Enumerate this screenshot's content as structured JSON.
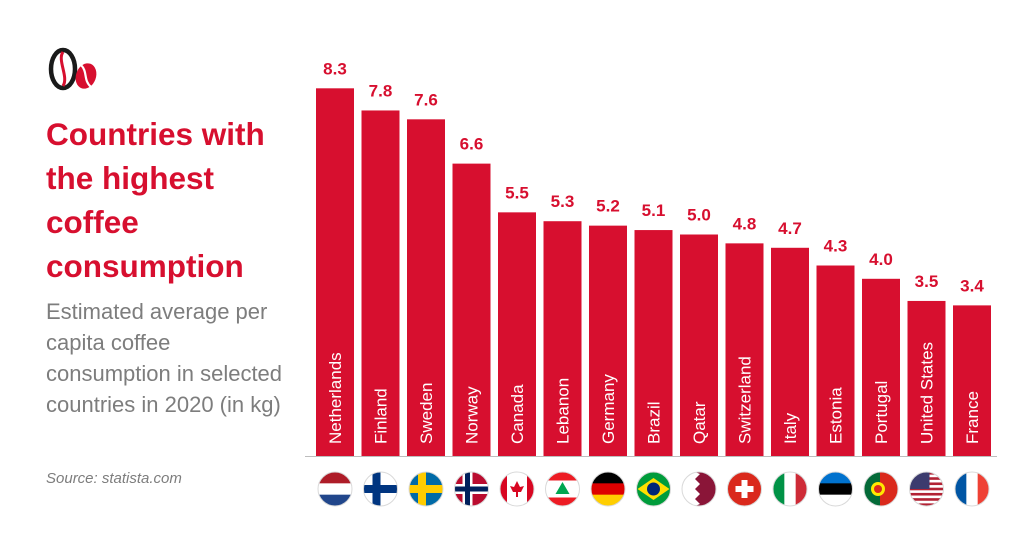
{
  "chart_data": {
    "type": "bar",
    "title": "Countries with the highest coffee consumption",
    "subtitle": "Estimated average per capita coffee consumption in selected countries in 2020 (in kg)",
    "source": "Source: statista.com",
    "categories": [
      "Netherlands",
      "Finland",
      "Sweden",
      "Norway",
      "Canada",
      "Lebanon",
      "Germany",
      "Brazil",
      "Qatar",
      "Switzerland",
      "Italy",
      "Estonia",
      "Portugal",
      "United States",
      "France"
    ],
    "values": [
      8.3,
      7.8,
      7.6,
      6.6,
      5.5,
      5.3,
      5.2,
      5.1,
      5.0,
      4.8,
      4.7,
      4.3,
      4.0,
      3.5,
      3.4
    ],
    "value_labels": [
      "8.3",
      "7.8",
      "7.6",
      "6.6",
      "5.5",
      "5.3",
      "5.2",
      "5.1",
      "5.0",
      "4.8",
      "4.7",
      "4.3",
      "4.0",
      "3.5",
      "3.4"
    ],
    "bar_color": "#d70f2f",
    "label_color": "#d70f2f",
    "flag_icons": [
      "netherlands-flag-icon",
      "finland-flag-icon",
      "sweden-flag-icon",
      "norway-flag-icon",
      "canada-flag-icon",
      "lebanon-flag-icon",
      "germany-flag-icon",
      "brazil-flag-icon",
      "qatar-flag-icon",
      "switzerland-flag-icon",
      "italy-flag-icon",
      "estonia-flag-icon",
      "portugal-flag-icon",
      "united-states-flag-icon",
      "france-flag-icon"
    ],
    "grid": false,
    "legend": "none"
  },
  "logo_icon": "coffee-beans-icon"
}
